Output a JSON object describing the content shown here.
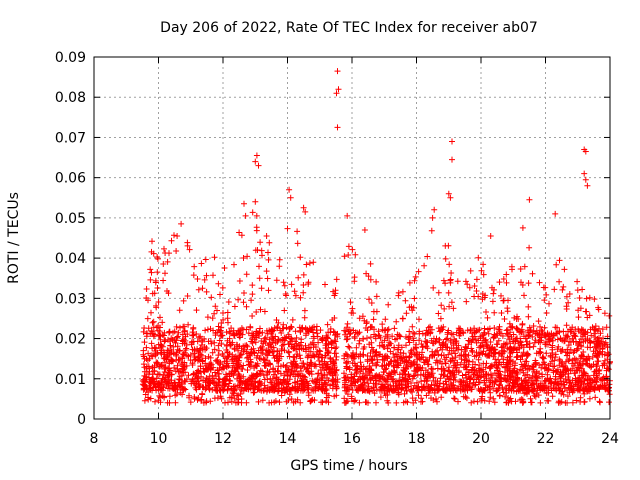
{
  "chart_data": {
    "type": "scatter",
    "title": "Day 206 of 2022, Rate Of TEC Index for receiver ab07",
    "xlabel": "GPS time / hours",
    "ylabel": "ROTI / TECUs",
    "xlim": [
      8,
      24
    ],
    "ylim": [
      0,
      0.09
    ],
    "x_ticks": [
      8,
      10,
      12,
      14,
      16,
      18,
      20,
      22,
      24
    ],
    "y_ticks": [
      0,
      0.01,
      0.02,
      0.03,
      0.04,
      0.05,
      0.06,
      0.07,
      0.08,
      0.09
    ],
    "x_tick_labels": [
      "8",
      "10",
      "12",
      "14",
      "16",
      "18",
      "20",
      "22",
      "24"
    ],
    "y_tick_labels": [
      "0",
      "0.01",
      "0.02",
      "0.03",
      "0.04",
      "0.05",
      "0.06",
      "0.07",
      "0.08",
      "0.09"
    ],
    "grid": true,
    "marker": "plus",
    "color": "#ff0000",
    "envelope": [
      {
        "x": 9.5,
        "y": 0.03
      },
      {
        "x": 9.7,
        "y": 0.044
      },
      {
        "x": 10.0,
        "y": 0.045
      },
      {
        "x": 10.5,
        "y": 0.046
      },
      {
        "x": 11.0,
        "y": 0.044
      },
      {
        "x": 11.5,
        "y": 0.04
      },
      {
        "x": 12.0,
        "y": 0.042
      },
      {
        "x": 12.5,
        "y": 0.048
      },
      {
        "x": 13.0,
        "y": 0.052
      },
      {
        "x": 13.5,
        "y": 0.045
      },
      {
        "x": 14.0,
        "y": 0.05
      },
      {
        "x": 14.5,
        "y": 0.046
      },
      {
        "x": 15.0,
        "y": 0.036
      },
      {
        "x": 15.5,
        "y": 0.04
      },
      {
        "x": 16.0,
        "y": 0.045
      },
      {
        "x": 16.5,
        "y": 0.042
      },
      {
        "x": 17.0,
        "y": 0.028
      },
      {
        "x": 17.5,
        "y": 0.032
      },
      {
        "x": 18.0,
        "y": 0.036
      },
      {
        "x": 18.5,
        "y": 0.05
      },
      {
        "x": 19.0,
        "y": 0.045
      },
      {
        "x": 19.5,
        "y": 0.034
      },
      {
        "x": 20.0,
        "y": 0.042
      },
      {
        "x": 20.5,
        "y": 0.036
      },
      {
        "x": 21.0,
        "y": 0.04
      },
      {
        "x": 21.5,
        "y": 0.046
      },
      {
        "x": 22.0,
        "y": 0.036
      },
      {
        "x": 22.5,
        "y": 0.042
      },
      {
        "x": 23.0,
        "y": 0.034
      },
      {
        "x": 23.5,
        "y": 0.032
      },
      {
        "x": 24.0,
        "y": 0.028
      }
    ],
    "baseline_min": 0.004,
    "outliers": [
      {
        "x": 15.55,
        "y": 0.0865
      },
      {
        "x": 15.58,
        "y": 0.082
      },
      {
        "x": 15.52,
        "y": 0.081
      },
      {
        "x": 15.55,
        "y": 0.0725
      },
      {
        "x": 19.1,
        "y": 0.069
      },
      {
        "x": 19.1,
        "y": 0.0645
      },
      {
        "x": 23.2,
        "y": 0.067
      },
      {
        "x": 23.25,
        "y": 0.0665
      },
      {
        "x": 23.2,
        "y": 0.061
      },
      {
        "x": 23.25,
        "y": 0.0595
      },
      {
        "x": 23.3,
        "y": 0.058
      },
      {
        "x": 13.05,
        "y": 0.0655
      },
      {
        "x": 13.0,
        "y": 0.064
      },
      {
        "x": 13.1,
        "y": 0.063
      },
      {
        "x": 12.65,
        "y": 0.0535
      },
      {
        "x": 12.7,
        "y": 0.0505
      },
      {
        "x": 13.0,
        "y": 0.054
      },
      {
        "x": 14.05,
        "y": 0.057
      },
      {
        "x": 14.1,
        "y": 0.055
      },
      {
        "x": 14.5,
        "y": 0.0525
      },
      {
        "x": 14.55,
        "y": 0.0515
      },
      {
        "x": 18.55,
        "y": 0.052
      },
      {
        "x": 18.5,
        "y": 0.05
      },
      {
        "x": 19.0,
        "y": 0.056
      },
      {
        "x": 19.05,
        "y": 0.055
      },
      {
        "x": 21.5,
        "y": 0.0545
      },
      {
        "x": 22.3,
        "y": 0.051
      },
      {
        "x": 15.85,
        "y": 0.0505
      },
      {
        "x": 16.4,
        "y": 0.047
      },
      {
        "x": 10.7,
        "y": 0.0485
      },
      {
        "x": 20.3,
        "y": 0.0455
      },
      {
        "x": 21.3,
        "y": 0.0475
      }
    ],
    "gaps": [
      [
        15.55,
        15.75
      ]
    ]
  }
}
